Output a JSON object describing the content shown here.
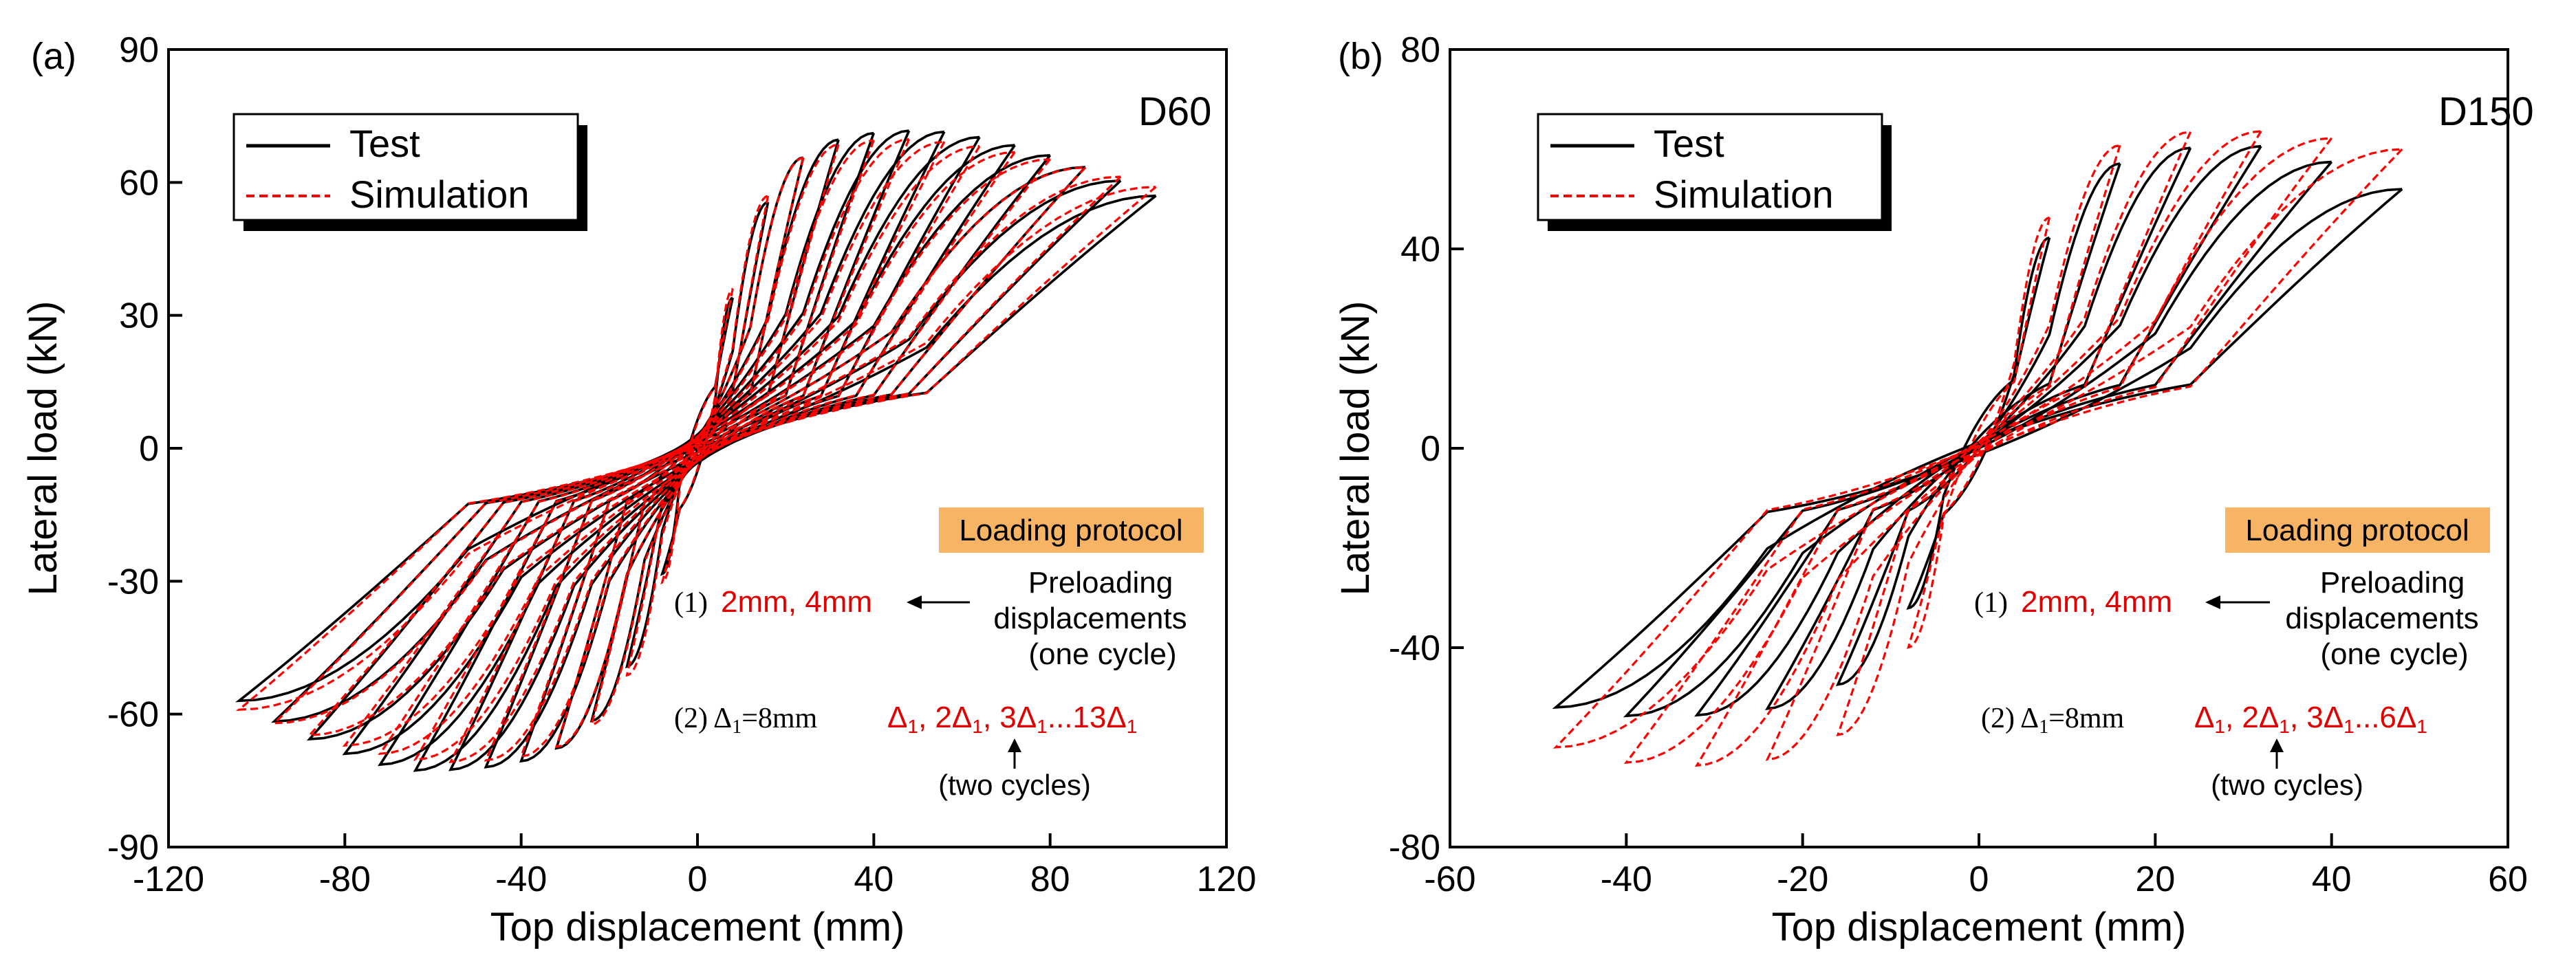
{
  "chart_data": [
    {
      "type": "line",
      "panel_label": "(a)",
      "specimen": "D60",
      "xlabel": "Top displacement (mm)",
      "ylabel": "Lateral load (kN)",
      "xlim": [
        -120,
        120
      ],
      "ylim": [
        -90,
        90
      ],
      "xticks": [
        -120,
        -80,
        -40,
        0,
        40,
        80,
        120
      ],
      "yticks": [
        -90,
        -60,
        -30,
        0,
        30,
        60,
        90
      ],
      "grid": false,
      "legend_position": "top-left",
      "series": [
        {
          "name": "Test",
          "color": "#000000",
          "style": "solid",
          "n_loops": 13,
          "peak_disp_step": 8,
          "max_disp": 104,
          "peak_load": 72,
          "peak_at_disp": 50,
          "residual_load": 57,
          "min_load": -73
        },
        {
          "name": "Simulation",
          "color": "#ff0000",
          "style": "dashed",
          "n_loops": 13,
          "peak_disp_step": 8,
          "max_disp": 104,
          "peak_load": 70,
          "peak_at_disp": 45,
          "residual_load": 59,
          "min_load": -71
        }
      ],
      "protocol": {
        "title": "Loading protocol",
        "step1_num": "(1)",
        "step1_values": "2mm, 4mm",
        "step1_note": [
          "Preloading",
          "displacements",
          "(one cycle)"
        ],
        "step2_num": "(2)",
        "step2_delta": "Δ",
        "step2_delta_sub": "1",
        "step2_delta_eq": "=8mm",
        "step2_values": {
          "t1": "Δ",
          "s1": "1",
          "t2": ", 2Δ",
          "s2": "1",
          "t3": ", 3Δ",
          "s3": "1",
          "t4": "...13Δ",
          "s4": "1"
        },
        "step2_note": "(two cycles)"
      }
    },
    {
      "type": "line",
      "panel_label": "(b)",
      "specimen": "D150",
      "xlabel": "Top displacement (mm)",
      "ylabel": "Lateral load (kN)",
      "xlim": [
        -60,
        60
      ],
      "ylim": [
        -80,
        80
      ],
      "xticks": [
        -60,
        -40,
        -20,
        0,
        20,
        40,
        60
      ],
      "yticks": [
        -80,
        -40,
        0,
        40,
        80
      ],
      "grid": false,
      "legend_position": "top-left",
      "series": [
        {
          "name": "Test",
          "color": "#000000",
          "style": "solid",
          "n_loops": 6,
          "peak_disp_step": 8,
          "max_disp": 48,
          "peak_load": 61,
          "peak_at_disp": 30,
          "residual_load": 52,
          "min_load": -54
        },
        {
          "name": "Simulation",
          "color": "#ff0000",
          "style": "dashed",
          "n_loops": 6,
          "peak_disp_step": 8,
          "max_disp": 48,
          "peak_load": 64,
          "peak_at_disp": 28,
          "residual_load": 60,
          "min_load": -64
        }
      ],
      "protocol": {
        "title": "Loading protocol",
        "step1_num": "(1)",
        "step1_values": "2mm, 4mm",
        "step1_note": [
          "Preloading",
          "displacements",
          "(one cycle)"
        ],
        "step2_num": "(2)",
        "step2_delta": "Δ",
        "step2_delta_sub": "1",
        "step2_delta_eq": "=8mm",
        "step2_values": {
          "t1": "Δ",
          "s1": "1",
          "t2": ", 2Δ",
          "s2": "1",
          "t3": ", 3Δ",
          "s3": "1",
          "t4": "...6Δ",
          "s4": "1"
        },
        "step2_note": "(two cycles)"
      }
    }
  ]
}
